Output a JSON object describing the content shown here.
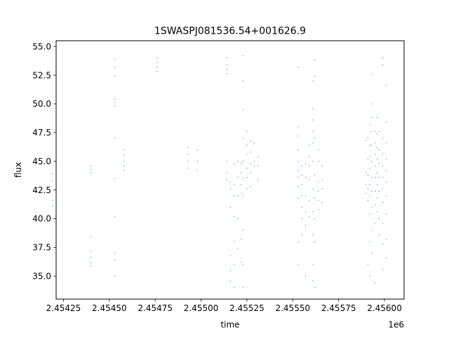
{
  "chart_data": {
    "type": "scatter",
    "title": "1SWASPJ081536.54+001626.9",
    "xlabel": "time",
    "ylabel": "flux",
    "x_offset_label": "1e6",
    "xlim": [
      2.45421,
      2.456107
    ],
    "ylim": [
      33.0,
      55.5
    ],
    "x_ticks": [
      {
        "value": 2.45425,
        "label": "2.45425"
      },
      {
        "value": 2.4545,
        "label": "2.45450"
      },
      {
        "value": 2.45475,
        "label": "2.45475"
      },
      {
        "value": 2.455,
        "label": "2.45500"
      },
      {
        "value": 2.45525,
        "label": "2.45525"
      },
      {
        "value": 2.4555,
        "label": "2.45550"
      },
      {
        "value": 2.45575,
        "label": "2.45575"
      },
      {
        "value": 2.456,
        "label": "2.45600"
      }
    ],
    "y_ticks": [
      {
        "value": 35.0,
        "label": "35.0"
      },
      {
        "value": 37.5,
        "label": "37.5"
      },
      {
        "value": 40.0,
        "label": "40.0"
      },
      {
        "value": 42.5,
        "label": "42.5"
      },
      {
        "value": 45.0,
        "label": "45.0"
      },
      {
        "value": 47.5,
        "label": "47.5"
      },
      {
        "value": 50.0,
        "label": "50.0"
      },
      {
        "value": 52.5,
        "label": "52.5"
      },
      {
        "value": 55.0,
        "label": "55.0"
      }
    ],
    "grid": false,
    "marker_color": "#1f77b4",
    "series": [
      {
        "values": [
          [
            2.45419,
            43.9
          ],
          [
            2.45419,
            43.3
          ],
          [
            2.45419,
            41.6
          ],
          [
            2.45419,
            41.1
          ],
          [
            2.45419,
            40.0
          ],
          [
            2.4544,
            44.6
          ],
          [
            2.4544,
            44.3
          ],
          [
            2.4544,
            44.0
          ],
          [
            2.4544,
            38.4
          ],
          [
            2.4544,
            37.2
          ],
          [
            2.4544,
            36.6
          ],
          [
            2.4544,
            36.2
          ],
          [
            2.4544,
            35.9
          ],
          [
            2.45453,
            53.9
          ],
          [
            2.45453,
            53.2
          ],
          [
            2.45453,
            52.4
          ],
          [
            2.45453,
            50.4
          ],
          [
            2.45453,
            50.1
          ],
          [
            2.45453,
            49.8
          ],
          [
            2.45453,
            47.0
          ],
          [
            2.45453,
            43.5
          ],
          [
            2.45453,
            40.2
          ],
          [
            2.45453,
            37.0
          ],
          [
            2.45453,
            36.4
          ],
          [
            2.45453,
            35.0
          ],
          [
            2.45458,
            46.0
          ],
          [
            2.45458,
            45.5
          ],
          [
            2.45458,
            45.0
          ],
          [
            2.45458,
            44.6
          ],
          [
            2.45458,
            44.2
          ],
          [
            2.45476,
            54.0
          ],
          [
            2.45476,
            53.6
          ],
          [
            2.45476,
            53.2
          ],
          [
            2.45476,
            52.8
          ],
          [
            2.45493,
            46.2
          ],
          [
            2.45493,
            45.6
          ],
          [
            2.45493,
            45.0
          ],
          [
            2.45493,
            44.4
          ],
          [
            2.45498,
            46.0
          ],
          [
            2.45498,
            45.0
          ],
          [
            2.45498,
            44.2
          ],
          [
            2.45514,
            54.0
          ],
          [
            2.45514,
            53.4
          ],
          [
            2.45514,
            53.0
          ],
          [
            2.45514,
            52.6
          ],
          [
            2.45514,
            45.0
          ],
          [
            2.45514,
            44.0
          ],
          [
            2.45514,
            43.4
          ],
          [
            2.45516,
            43.2
          ],
          [
            2.45516,
            42.6
          ],
          [
            2.45516,
            41.0
          ],
          [
            2.45516,
            36.8
          ],
          [
            2.45516,
            35.5
          ],
          [
            2.45516,
            34.6
          ],
          [
            2.45518,
            44.8
          ],
          [
            2.45518,
            43.0
          ],
          [
            2.45518,
            42.0
          ],
          [
            2.45518,
            40.2
          ],
          [
            2.45518,
            38.0
          ],
          [
            2.45518,
            36.0
          ],
          [
            2.45518,
            34.0
          ],
          [
            2.4552,
            45.0
          ],
          [
            2.4552,
            43.6
          ],
          [
            2.4552,
            42.0
          ],
          [
            2.4552,
            40.0
          ],
          [
            2.4552,
            37.4
          ],
          [
            2.45522,
            44.8
          ],
          [
            2.45522,
            44.0
          ],
          [
            2.45522,
            43.0
          ],
          [
            2.45522,
            42.2
          ],
          [
            2.45522,
            38.2
          ],
          [
            2.45522,
            36.2
          ],
          [
            2.45523,
            54.2
          ],
          [
            2.45523,
            52.0
          ],
          [
            2.45523,
            49.5
          ],
          [
            2.45523,
            47.0
          ],
          [
            2.45523,
            45.0
          ],
          [
            2.45523,
            43.5
          ],
          [
            2.45523,
            42.0
          ],
          [
            2.45523,
            39.0
          ],
          [
            2.45523,
            36.0
          ],
          [
            2.45523,
            34.0
          ],
          [
            2.45525,
            47.6
          ],
          [
            2.45525,
            46.4
          ],
          [
            2.45525,
            45.6
          ],
          [
            2.45525,
            44.4
          ],
          [
            2.45525,
            43.6
          ],
          [
            2.45525,
            42.6
          ],
          [
            2.45527,
            46.8
          ],
          [
            2.45527,
            45.8
          ],
          [
            2.45527,
            44.8
          ],
          [
            2.45527,
            44.0
          ],
          [
            2.45527,
            42.8
          ],
          [
            2.45529,
            46.6
          ],
          [
            2.45529,
            45.0
          ],
          [
            2.45529,
            44.6
          ],
          [
            2.45531,
            45.4
          ],
          [
            2.45531,
            44.6
          ],
          [
            2.45531,
            43.4
          ],
          [
            2.45553,
            53.2
          ],
          [
            2.45553,
            48.0
          ],
          [
            2.45553,
            47.2
          ],
          [
            2.45553,
            46.0
          ],
          [
            2.45553,
            45.0
          ],
          [
            2.45553,
            44.2
          ],
          [
            2.45553,
            43.6
          ],
          [
            2.45553,
            42.8
          ],
          [
            2.45553,
            41.8
          ],
          [
            2.45553,
            38.0
          ],
          [
            2.45553,
            36.0
          ],
          [
            2.45555,
            44.6
          ],
          [
            2.45555,
            43.8
          ],
          [
            2.45555,
            43.0
          ],
          [
            2.45555,
            42.0
          ],
          [
            2.45555,
            41.0
          ],
          [
            2.45555,
            40.0
          ],
          [
            2.45555,
            38.6
          ],
          [
            2.45557,
            44.8
          ],
          [
            2.45557,
            43.6
          ],
          [
            2.45557,
            42.0
          ],
          [
            2.45557,
            40.6
          ],
          [
            2.45557,
            39.4
          ],
          [
            2.45557,
            35.0
          ],
          [
            2.45559,
            46.4
          ],
          [
            2.45559,
            45.4
          ],
          [
            2.45559,
            44.6
          ],
          [
            2.45559,
            43.4
          ],
          [
            2.45559,
            41.6
          ],
          [
            2.45559,
            40.2
          ],
          [
            2.45561,
            52.0
          ],
          [
            2.45561,
            49.6
          ],
          [
            2.45561,
            48.6
          ],
          [
            2.45561,
            47.6
          ],
          [
            2.45561,
            46.6
          ],
          [
            2.45561,
            45.0
          ],
          [
            2.45561,
            42.6
          ],
          [
            2.45561,
            40.6
          ],
          [
            2.45561,
            38.6
          ],
          [
            2.45561,
            36.0
          ],
          [
            2.45561,
            34.6
          ],
          [
            2.45562,
            53.8
          ],
          [
            2.45562,
            52.4
          ],
          [
            2.45562,
            47.0
          ],
          [
            2.45562,
            43.8
          ],
          [
            2.45562,
            41.8
          ],
          [
            2.45562,
            40.0
          ],
          [
            2.45562,
            38.0
          ],
          [
            2.45562,
            34.0
          ],
          [
            2.45564,
            46.0
          ],
          [
            2.45564,
            45.0
          ],
          [
            2.45564,
            43.2
          ],
          [
            2.45564,
            42.4
          ],
          [
            2.45564,
            41.6
          ],
          [
            2.45564,
            40.8
          ],
          [
            2.45566,
            44.6
          ],
          [
            2.45566,
            43.4
          ],
          [
            2.45566,
            42.6
          ],
          [
            2.45566,
            41.4
          ],
          [
            2.4559,
            44.0
          ],
          [
            2.4559,
            43.0
          ],
          [
            2.4559,
            42.2
          ],
          [
            2.4559,
            46.8
          ],
          [
            2.45591,
            47.0
          ],
          [
            2.45591,
            45.2
          ],
          [
            2.45591,
            43.8
          ],
          [
            2.45591,
            42.6
          ],
          [
            2.45591,
            41.6
          ],
          [
            2.45591,
            36.0
          ],
          [
            2.45592,
            48.2
          ],
          [
            2.45592,
            46.4
          ],
          [
            2.45592,
            45.4
          ],
          [
            2.45592,
            44.4
          ],
          [
            2.45592,
            43.0
          ],
          [
            2.45592,
            42.0
          ],
          [
            2.45592,
            40.4
          ],
          [
            2.45592,
            38.0
          ],
          [
            2.45592,
            35.0
          ],
          [
            2.45593,
            52.6
          ],
          [
            2.45593,
            50.0
          ],
          [
            2.45593,
            48.8
          ],
          [
            2.45593,
            47.6
          ],
          [
            2.45593,
            46.4
          ],
          [
            2.45593,
            45.0
          ],
          [
            2.45593,
            43.6
          ],
          [
            2.45593,
            42.4
          ],
          [
            2.45593,
            41.0
          ],
          [
            2.45593,
            39.0
          ],
          [
            2.45593,
            37.0
          ],
          [
            2.45595,
            47.6
          ],
          [
            2.45595,
            46.6
          ],
          [
            2.45595,
            45.6
          ],
          [
            2.45595,
            44.6
          ],
          [
            2.45595,
            43.6
          ],
          [
            2.45595,
            42.4
          ],
          [
            2.45595,
            41.2
          ],
          [
            2.45595,
            39.6
          ],
          [
            2.45595,
            34.4
          ],
          [
            2.45596,
            48.8
          ],
          [
            2.45596,
            47.4
          ],
          [
            2.45596,
            46.2
          ],
          [
            2.45596,
            45.2
          ],
          [
            2.45596,
            44.0
          ],
          [
            2.45596,
            43.0
          ],
          [
            2.45596,
            41.8
          ],
          [
            2.45596,
            40.6
          ],
          [
            2.45597,
            47.6
          ],
          [
            2.45597,
            46.0
          ],
          [
            2.45597,
            44.8
          ],
          [
            2.45597,
            43.6
          ],
          [
            2.45597,
            42.4
          ],
          [
            2.45597,
            40.0
          ],
          [
            2.45597,
            38.6
          ],
          [
            2.45599,
            54.0
          ],
          [
            2.45599,
            53.4
          ],
          [
            2.45599,
            47.0
          ],
          [
            2.45599,
            45.6
          ],
          [
            2.45599,
            44.6
          ],
          [
            2.45599,
            43.6
          ],
          [
            2.45599,
            42.6
          ],
          [
            2.45599,
            41.4
          ],
          [
            2.45599,
            39.6
          ],
          [
            2.45599,
            37.8
          ],
          [
            2.45599,
            35.6
          ],
          [
            2.45601,
            51.6
          ],
          [
            2.45601,
            48.4
          ],
          [
            2.45601,
            46.6
          ],
          [
            2.45601,
            45.2
          ],
          [
            2.45601,
            44.2
          ],
          [
            2.45601,
            43.2
          ],
          [
            2.45601,
            42.0
          ],
          [
            2.45601,
            40.4
          ],
          [
            2.45601,
            38.2
          ],
          [
            2.45601,
            36.6
          ]
        ]
      }
    ]
  }
}
